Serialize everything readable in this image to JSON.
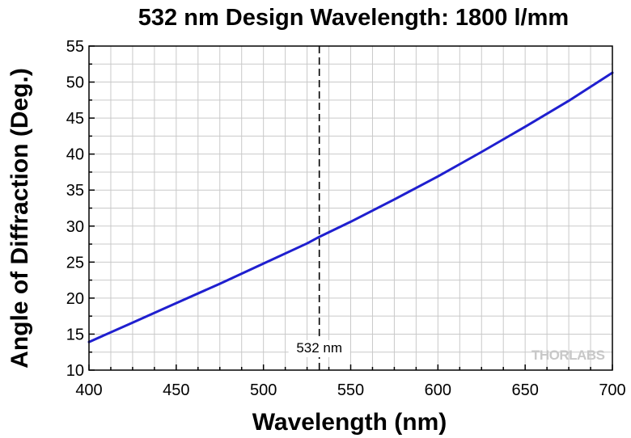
{
  "chart_data": {
    "type": "line",
    "title": "532 nm Design Wavelength: 1800 l/mm",
    "xlabel": "Wavelength (nm)",
    "ylabel": "Angle of Diffraction (Deg.)",
    "xlim": [
      400,
      700
    ],
    "ylim": [
      10,
      55
    ],
    "grid": true,
    "x_ticks": [
      400,
      450,
      500,
      550,
      600,
      650,
      700
    ],
    "y_ticks": [
      10,
      15,
      20,
      25,
      30,
      35,
      40,
      45,
      50,
      55
    ],
    "series": [
      {
        "name": "Angle of Diffraction",
        "color": "#1f1fcf",
        "x": [
          400,
          425,
          450,
          475,
          500,
          525,
          532,
          550,
          575,
          600,
          625,
          650,
          675,
          700
        ],
        "y": [
          13.9,
          16.6,
          19.3,
          22.0,
          24.8,
          27.6,
          28.5,
          30.6,
          33.7,
          36.9,
          40.3,
          43.8,
          47.4,
          51.3
        ]
      }
    ],
    "annotations": [
      {
        "type": "vline",
        "x": 532,
        "style": "dashed",
        "label": "532 nm"
      }
    ]
  },
  "branding": {
    "logo_text": "THORLABS"
  }
}
